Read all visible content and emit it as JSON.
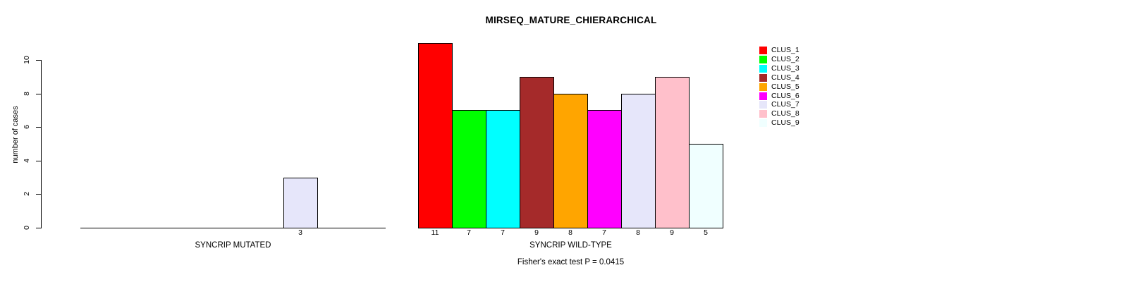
{
  "chart_data": {
    "type": "bar",
    "title": "MIRSEQ_MATURE_CHIERARCHICAL",
    "ylabel": "number of cases",
    "ylim": [
      0,
      10
    ],
    "yticks": [
      0,
      2,
      4,
      6,
      8,
      10
    ],
    "grid": false,
    "legend_position": "right",
    "categories": [
      "CLUS_1",
      "CLUS_2",
      "CLUS_3",
      "CLUS_4",
      "CLUS_5",
      "CLUS_6",
      "CLUS_7",
      "CLUS_8",
      "CLUS_9"
    ],
    "colors": [
      "#FF0000",
      "#00FF00",
      "#00FFFF",
      "#A52A2A",
      "#FFA500",
      "#FF00FF",
      "#E6E6FA",
      "#FFC0CB",
      "#F0FFFF"
    ],
    "series": [
      {
        "name": "SYNCRIP MUTATED",
        "values": [
          0,
          0,
          0,
          0,
          0,
          0,
          3,
          0,
          0
        ]
      },
      {
        "name": "SYNCRIP WILD-TYPE",
        "values": [
          11,
          7,
          7,
          9,
          8,
          7,
          8,
          9,
          5
        ]
      }
    ],
    "bar_value_labels_shown_for_nonzero": true,
    "annotation": "Fisher's exact test P = 0.0415"
  }
}
